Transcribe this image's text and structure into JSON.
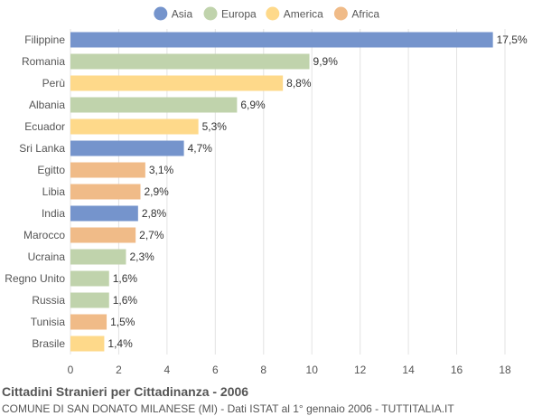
{
  "chart_data": {
    "type": "bar",
    "orientation": "horizontal",
    "title": "Cittadini Stranieri per Cittadinanza - 2006",
    "subtitle": "COMUNE DI SAN DONATO MILANESE (MI) - Dati ISTAT al 1° gennaio 2006 - TUTTITALIA.IT",
    "xlim": [
      0,
      18
    ],
    "xticks": [
      0,
      2,
      4,
      6,
      8,
      10,
      12,
      14,
      16,
      18
    ],
    "grid": true,
    "legend_position": "top",
    "legend": [
      {
        "name": "Asia",
        "color": "#7594cc"
      },
      {
        "name": "Europa",
        "color": "#c0d3ac"
      },
      {
        "name": "America",
        "color": "#fed98a"
      },
      {
        "name": "Africa",
        "color": "#f0bb88"
      }
    ],
    "bars": [
      {
        "category": "Filippine",
        "value": 17.5,
        "label": "17,5%",
        "group": "Asia"
      },
      {
        "category": "Romania",
        "value": 9.9,
        "label": "9,9%",
        "group": "Europa"
      },
      {
        "category": "Perù",
        "value": 8.8,
        "label": "8,8%",
        "group": "America"
      },
      {
        "category": "Albania",
        "value": 6.9,
        "label": "6,9%",
        "group": "Europa"
      },
      {
        "category": "Ecuador",
        "value": 5.3,
        "label": "5,3%",
        "group": "America"
      },
      {
        "category": "Sri Lanka",
        "value": 4.7,
        "label": "4,7%",
        "group": "Asia"
      },
      {
        "category": "Egitto",
        "value": 3.1,
        "label": "3,1%",
        "group": "Africa"
      },
      {
        "category": "Libia",
        "value": 2.9,
        "label": "2,9%",
        "group": "Africa"
      },
      {
        "category": "India",
        "value": 2.8,
        "label": "2,8%",
        "group": "Asia"
      },
      {
        "category": "Marocco",
        "value": 2.7,
        "label": "2,7%",
        "group": "Africa"
      },
      {
        "category": "Ucraina",
        "value": 2.3,
        "label": "2,3%",
        "group": "Europa"
      },
      {
        "category": "Regno Unito",
        "value": 1.6,
        "label": "1,6%",
        "group": "Europa"
      },
      {
        "category": "Russia",
        "value": 1.6,
        "label": "1,6%",
        "group": "Europa"
      },
      {
        "category": "Tunisia",
        "value": 1.5,
        "label": "1,5%",
        "group": "Africa"
      },
      {
        "category": "Brasile",
        "value": 1.4,
        "label": "1,4%",
        "group": "America"
      }
    ]
  }
}
